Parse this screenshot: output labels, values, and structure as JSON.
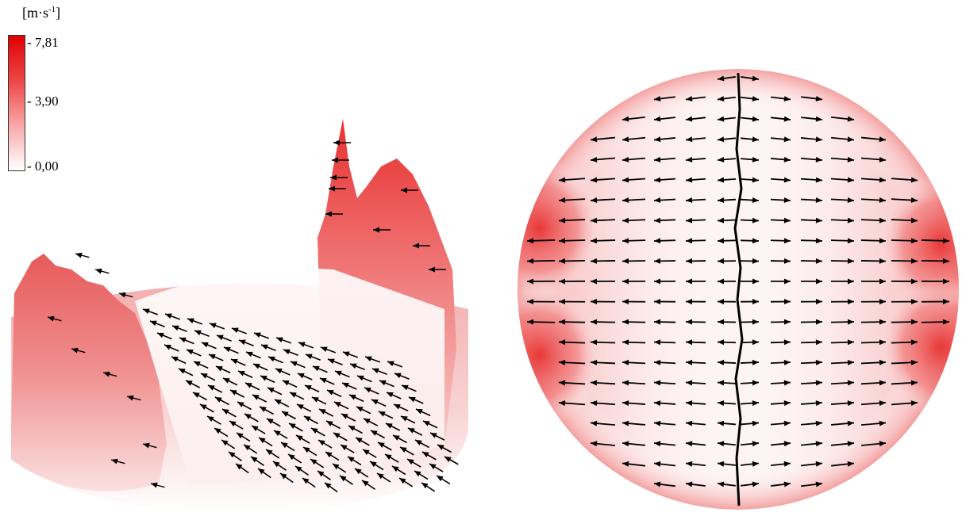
{
  "legend": {
    "unit_text": "[m·s",
    "unit_sup": "-1",
    "unit_close": "]",
    "max_label": "7,81",
    "mid_label": "3,90",
    "min_label": "0,00",
    "scale_min": 0.0,
    "scale_max": 7.81,
    "color_low": "#ffffff",
    "color_high": "#e00000"
  },
  "colors": {
    "arrow": "#000000",
    "background": "#ffffff"
  }
}
